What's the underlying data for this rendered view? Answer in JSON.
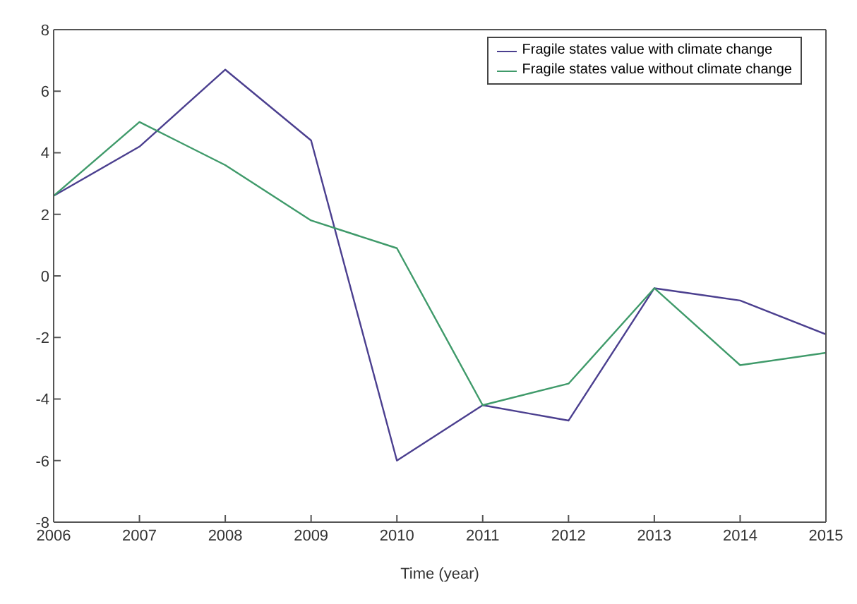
{
  "chart_data": {
    "type": "line",
    "xlabel": "Time (year)",
    "x": [
      2006,
      2007,
      2008,
      2009,
      2010,
      2011,
      2012,
      2013,
      2014,
      2015
    ],
    "series": [
      {
        "name": "Fragile states value with climate change",
        "color": "#4b3f8f",
        "values": [
          2.6,
          4.2,
          6.7,
          4.4,
          -6.0,
          -4.2,
          -4.7,
          -0.4,
          -0.8,
          -1.9
        ]
      },
      {
        "name": "Fragile states value without climate change",
        "color": "#3f9a6a",
        "values": [
          2.6,
          5.0,
          3.6,
          1.8,
          0.9,
          -4.2,
          -3.5,
          -0.4,
          -2.9,
          -2.5
        ]
      }
    ],
    "xlim": [
      2006,
      2015
    ],
    "xticks": [
      2006,
      2007,
      2008,
      2009,
      2010,
      2011,
      2012,
      2013,
      2014,
      2015
    ],
    "ylim": [
      -8,
      8
    ],
    "yticks": [
      -8,
      -6,
      -4,
      -2,
      0,
      2,
      4,
      6,
      8
    ],
    "grid": false,
    "legend": "top right",
    "marker": "none",
    "line_style": "solid"
  }
}
